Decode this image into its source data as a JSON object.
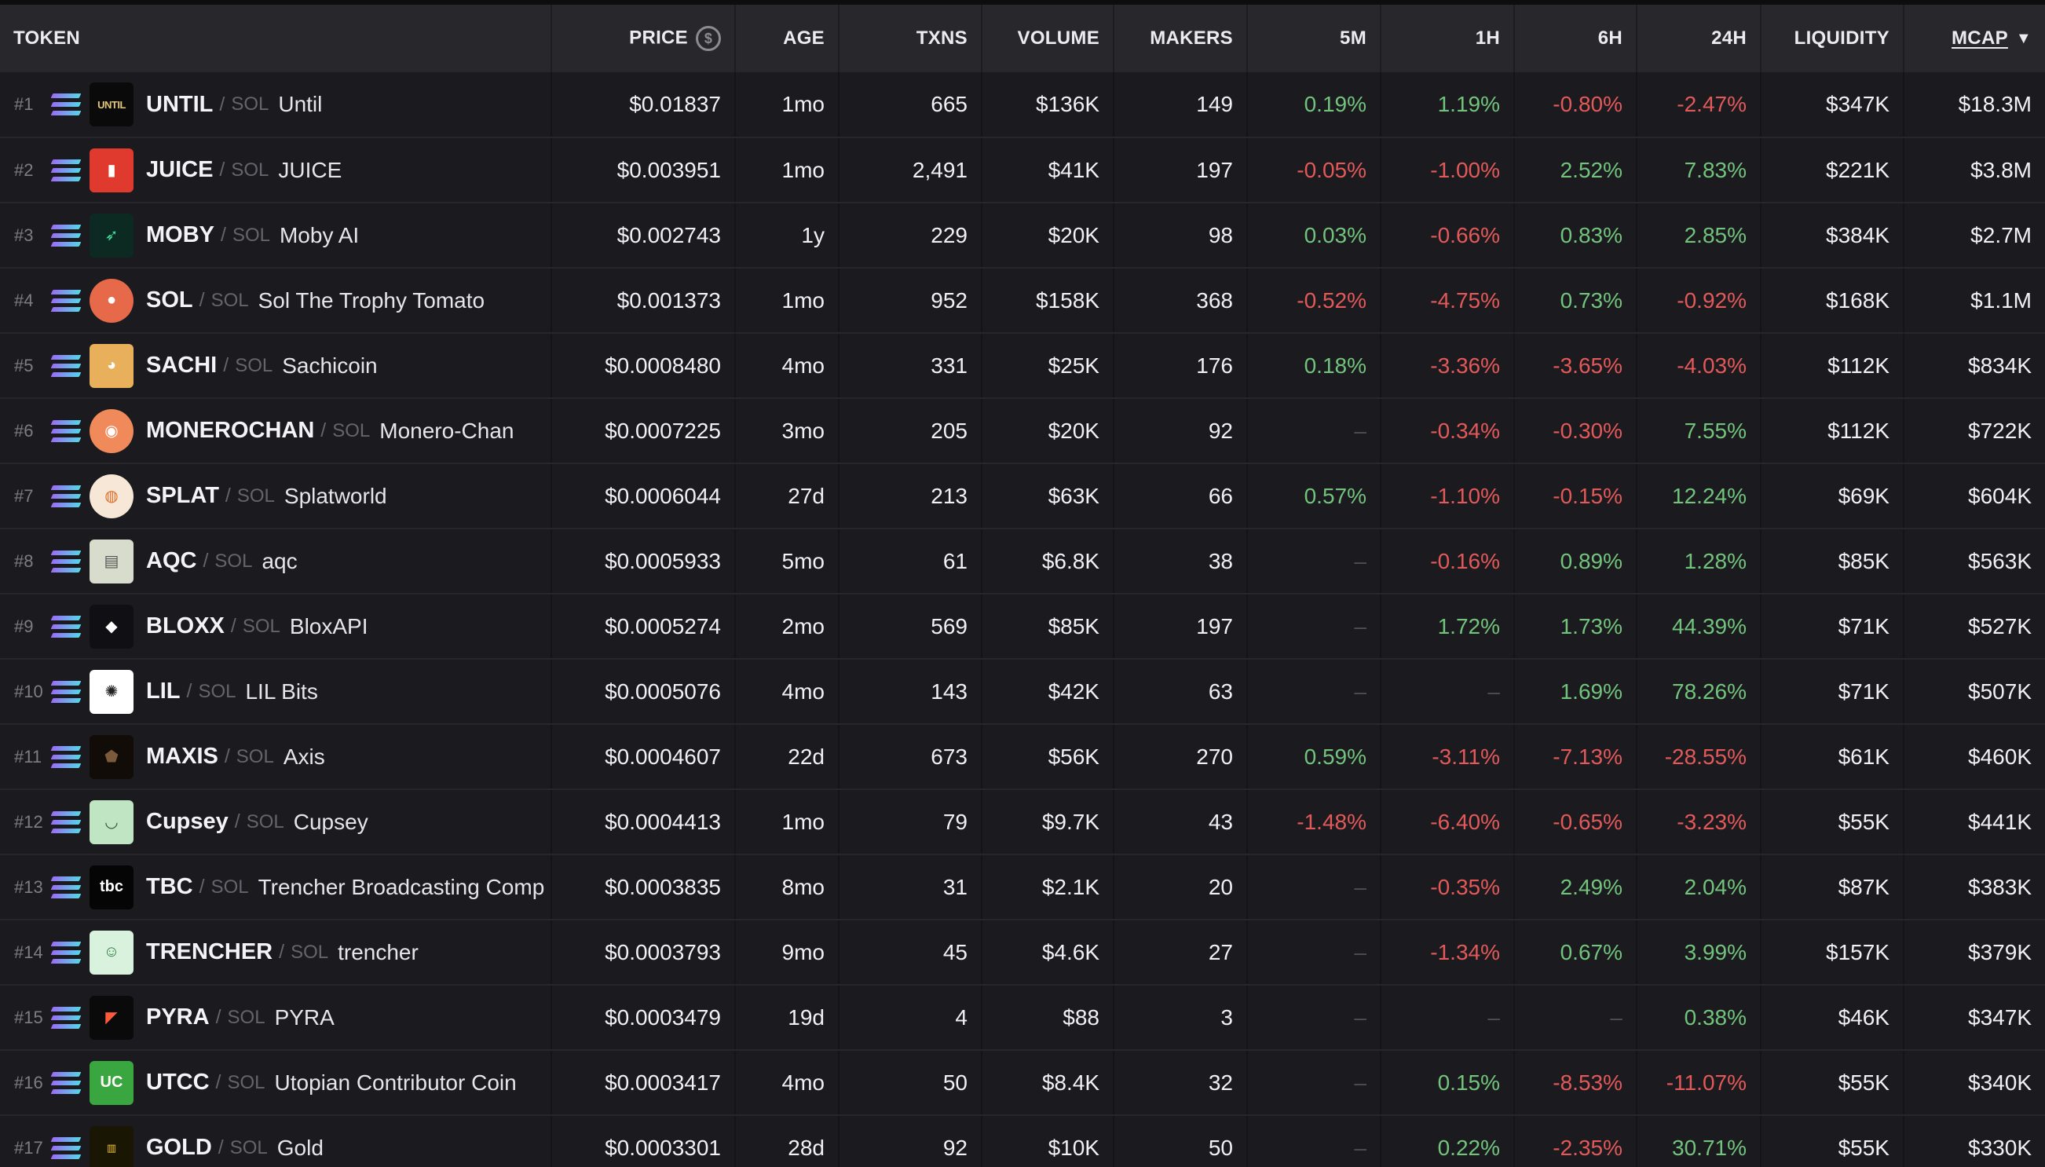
{
  "columns": {
    "token": "TOKEN",
    "price": "PRICE",
    "price_icon": "usd-circle-icon",
    "age": "AGE",
    "txns": "TXNS",
    "volume": "VOLUME",
    "makers": "MAKERS",
    "m5": "5M",
    "h1": "1H",
    "h6": "6H",
    "h24": "24H",
    "liquidity": "LIQUIDITY",
    "mcap": "MCAP",
    "mcap_sort_icon": "caret-down-icon"
  },
  "colors": {
    "positive": "#72c47d",
    "negative": "#e3595a",
    "background": "#19191d",
    "header": "#27272c"
  },
  "chain_icon": "solana-icon",
  "rows": [
    {
      "rank": "#1",
      "symbol": "UNTIL",
      "chain": "SOL",
      "name": "Until",
      "price": "$0.01837",
      "age": "1mo",
      "txns": "665",
      "volume": "$136K",
      "makers": "149",
      "m5": "0.19%",
      "h1": "1.19%",
      "h6": "-0.80%",
      "h24": "-2.47%",
      "liquidity": "$347K",
      "mcap": "$18.3M",
      "icon": "until-logo-icon"
    },
    {
      "rank": "#2",
      "symbol": "JUICE",
      "chain": "SOL",
      "name": "JUICE",
      "price": "$0.003951",
      "age": "1mo",
      "txns": "2,491",
      "volume": "$41K",
      "makers": "197",
      "m5": "-0.05%",
      "h1": "-1.00%",
      "h6": "2.52%",
      "h24": "7.83%",
      "liquidity": "$221K",
      "mcap": "$3.8M",
      "icon": "juice-logo-icon"
    },
    {
      "rank": "#3",
      "symbol": "MOBY",
      "chain": "SOL",
      "name": "Moby AI",
      "price": "$0.002743",
      "age": "1y",
      "txns": "229",
      "volume": "$20K",
      "makers": "98",
      "m5": "0.03%",
      "h1": "-0.66%",
      "h6": "0.83%",
      "h24": "2.85%",
      "liquidity": "$384K",
      "mcap": "$2.7M",
      "icon": "moby-logo-icon"
    },
    {
      "rank": "#4",
      "symbol": "SOL",
      "chain": "SOL",
      "name": "Sol The Trophy Tomato",
      "price": "$0.001373",
      "age": "1mo",
      "txns": "952",
      "volume": "$158K",
      "makers": "368",
      "m5": "-0.52%",
      "h1": "-4.75%",
      "h6": "0.73%",
      "h24": "-0.92%",
      "liquidity": "$168K",
      "mcap": "$1.1M",
      "icon": "tomato-logo-icon"
    },
    {
      "rank": "#5",
      "symbol": "SACHI",
      "chain": "SOL",
      "name": "Sachicoin",
      "price": "$0.0008480",
      "age": "4mo",
      "txns": "331",
      "volume": "$25K",
      "makers": "176",
      "m5": "0.18%",
      "h1": "-3.36%",
      "h6": "-3.65%",
      "h24": "-4.03%",
      "liquidity": "$112K",
      "mcap": "$834K",
      "icon": "sachi-logo-icon"
    },
    {
      "rank": "#6",
      "symbol": "MONEROCHAN",
      "chain": "SOL",
      "name": "Monero-Chan",
      "price": "$0.0007225",
      "age": "3mo",
      "txns": "205",
      "volume": "$20K",
      "makers": "92",
      "m5": "–",
      "h1": "-0.34%",
      "h6": "-0.30%",
      "h24": "7.55%",
      "liquidity": "$112K",
      "mcap": "$722K",
      "icon": "monerochan-logo-icon"
    },
    {
      "rank": "#7",
      "symbol": "SPLAT",
      "chain": "SOL",
      "name": "Splatworld",
      "price": "$0.0006044",
      "age": "27d",
      "txns": "213",
      "volume": "$63K",
      "makers": "66",
      "m5": "0.57%",
      "h1": "-1.10%",
      "h6": "-0.15%",
      "h24": "12.24%",
      "liquidity": "$69K",
      "mcap": "$604K",
      "icon": "splat-logo-icon"
    },
    {
      "rank": "#8",
      "symbol": "AQC",
      "chain": "SOL",
      "name": "aqc",
      "price": "$0.0005933",
      "age": "5mo",
      "txns": "61",
      "volume": "$6.8K",
      "makers": "38",
      "m5": "–",
      "h1": "-0.16%",
      "h6": "0.89%",
      "h24": "1.28%",
      "liquidity": "$85K",
      "mcap": "$563K",
      "icon": "aqc-logo-icon"
    },
    {
      "rank": "#9",
      "symbol": "BLOXX",
      "chain": "SOL",
      "name": "BloxAPI",
      "price": "$0.0005274",
      "age": "2mo",
      "txns": "569",
      "volume": "$85K",
      "makers": "197",
      "m5": "–",
      "h1": "1.72%",
      "h6": "1.73%",
      "h24": "44.39%",
      "liquidity": "$71K",
      "mcap": "$527K",
      "icon": "bloxx-logo-icon"
    },
    {
      "rank": "#10",
      "symbol": "LIL",
      "chain": "SOL",
      "name": "LIL Bits",
      "price": "$0.0005076",
      "age": "4mo",
      "txns": "143",
      "volume": "$42K",
      "makers": "63",
      "m5": "–",
      "h1": "–",
      "h6": "1.69%",
      "h24": "78.26%",
      "liquidity": "$71K",
      "mcap": "$507K",
      "icon": "lil-logo-icon"
    },
    {
      "rank": "#11",
      "symbol": "MAXIS",
      "chain": "SOL",
      "name": "Axis",
      "price": "$0.0004607",
      "age": "22d",
      "txns": "673",
      "volume": "$56K",
      "makers": "270",
      "m5": "0.59%",
      "h1": "-3.11%",
      "h6": "-7.13%",
      "h24": "-28.55%",
      "liquidity": "$61K",
      "mcap": "$460K",
      "icon": "maxis-logo-icon"
    },
    {
      "rank": "#12",
      "symbol": "Cupsey",
      "chain": "SOL",
      "name": "Cupsey",
      "price": "$0.0004413",
      "age": "1mo",
      "txns": "79",
      "volume": "$9.7K",
      "makers": "43",
      "m5": "-1.48%",
      "h1": "-6.40%",
      "h6": "-0.65%",
      "h24": "-3.23%",
      "liquidity": "$55K",
      "mcap": "$441K",
      "icon": "cupsey-logo-icon"
    },
    {
      "rank": "#13",
      "symbol": "TBC",
      "chain": "SOL",
      "name": "Trencher Broadcasting Comp",
      "price": "$0.0003835",
      "age": "8mo",
      "txns": "31",
      "volume": "$2.1K",
      "makers": "20",
      "m5": "–",
      "h1": "-0.35%",
      "h6": "2.49%",
      "h24": "2.04%",
      "liquidity": "$87K",
      "mcap": "$383K",
      "icon": "tbc-logo-icon"
    },
    {
      "rank": "#14",
      "symbol": "TRENCHER",
      "chain": "SOL",
      "name": "trencher",
      "price": "$0.0003793",
      "age": "9mo",
      "txns": "45",
      "volume": "$4.6K",
      "makers": "27",
      "m5": "–",
      "h1": "-1.34%",
      "h6": "0.67%",
      "h24": "3.99%",
      "liquidity": "$157K",
      "mcap": "$379K",
      "icon": "trencher-logo-icon"
    },
    {
      "rank": "#15",
      "symbol": "PYRA",
      "chain": "SOL",
      "name": "PYRA",
      "price": "$0.0003479",
      "age": "19d",
      "txns": "4",
      "volume": "$88",
      "makers": "3",
      "m5": "–",
      "h1": "–",
      "h6": "–",
      "h24": "0.38%",
      "liquidity": "$46K",
      "mcap": "$347K",
      "icon": "pyra-logo-icon"
    },
    {
      "rank": "#16",
      "symbol": "UTCC",
      "chain": "SOL",
      "name": "Utopian Contributor Coin",
      "price": "$0.0003417",
      "age": "4mo",
      "txns": "50",
      "volume": "$8.4K",
      "makers": "32",
      "m5": "–",
      "h1": "0.15%",
      "h6": "-8.53%",
      "h24": "-11.07%",
      "liquidity": "$55K",
      "mcap": "$340K",
      "icon": "utcc-logo-icon"
    },
    {
      "rank": "#17",
      "symbol": "GOLD",
      "chain": "SOL",
      "name": "Gold",
      "price": "$0.0003301",
      "age": "28d",
      "txns": "92",
      "volume": "$10K",
      "makers": "50",
      "m5": "–",
      "h1": "0.22%",
      "h6": "-2.35%",
      "h24": "30.71%",
      "liquidity": "$55K",
      "mcap": "$330K",
      "icon": "gold-logo-icon"
    }
  ]
}
